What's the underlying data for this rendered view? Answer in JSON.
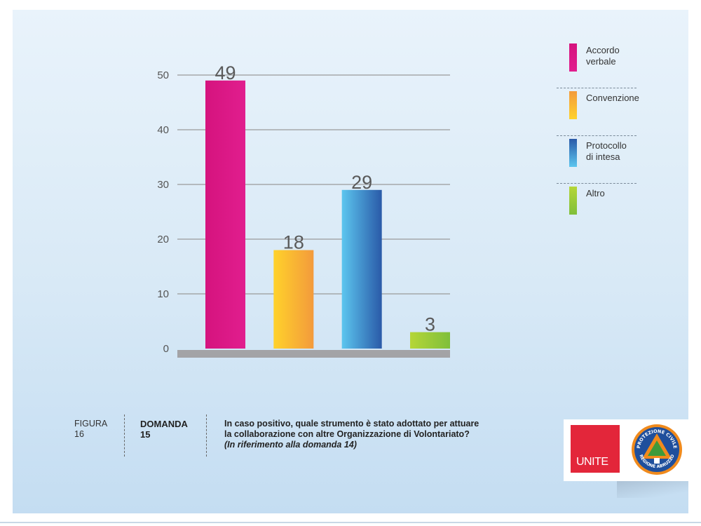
{
  "chart_data": {
    "type": "bar",
    "categories": [
      "Accordo verbale",
      "Convenzione",
      "Protocollo di intesa",
      "Altro"
    ],
    "values": [
      49,
      18,
      29,
      3
    ],
    "data_labels": [
      "49",
      "18",
      "29",
      "3"
    ],
    "ylim": [
      0,
      50
    ],
    "yticks": [
      0,
      10,
      20,
      30,
      40,
      50
    ],
    "grid": true,
    "legend_position": "right",
    "colors": [
      [
        "#d5137e",
        "#e11e8e"
      ],
      [
        "#ffd22b",
        "#f39a3c"
      ],
      [
        "#5cc6ef",
        "#2a5aa8"
      ],
      [
        "#b5d638",
        "#7fbf3a"
      ]
    ]
  },
  "legend": [
    {
      "line1": "Accordo",
      "line2": "verbale"
    },
    {
      "line1": "Convenzione",
      "line2": ""
    },
    {
      "line1": "Protocollo",
      "line2": "di intesa"
    },
    {
      "line1": "Altro",
      "line2": ""
    }
  ],
  "caption": {
    "figura_label": "FIGURA",
    "figura_number": "16",
    "domanda_label": "DOMANDA",
    "domanda_number": "15",
    "question_line1": "In caso positivo, quale strumento è stato adottato per attuare",
    "question_line2": "la collaborazione con altre Organizzazione di Volontariato?",
    "question_note": "(In riferimento alla domanda 14)"
  },
  "logos": {
    "unite_text": "UNITE",
    "seal_top_text": "PROTEZIONE CIVILE",
    "seal_bottom_text": "REGIONE ABRUZZO"
  }
}
